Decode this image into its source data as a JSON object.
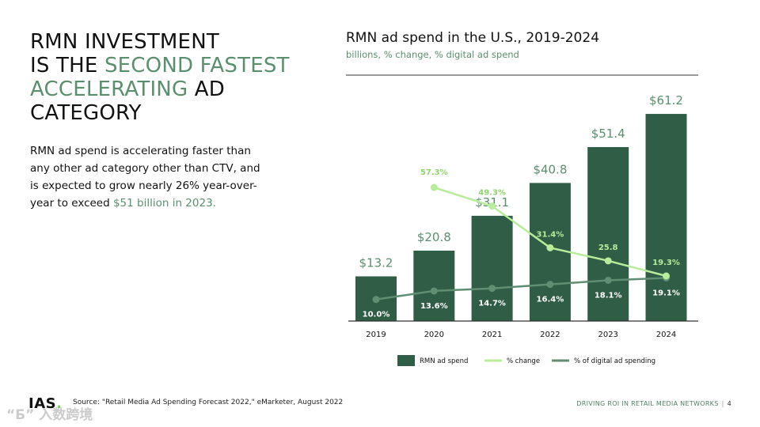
{
  "headline": {
    "line1": "RMN INVESTMENT",
    "line2_prefix": "IS THE ",
    "line2_accent": "SECOND FASTEST",
    "line3_accent": "ACCELERATING",
    "line3_suffix": " AD",
    "line4": "CATEGORY"
  },
  "body": {
    "text": "RMN ad spend is accelerating faster than any other ad category other than CTV, and is expected to grow nearly 26% year-over-year to exceed ",
    "accent": "$51 billion in 2023."
  },
  "chart": {
    "title": "RMN ad spend in the U.S., 2019-2024",
    "subtitle": "billions, % change, % digital ad spend"
  },
  "colors": {
    "bar": "#2f5d45",
    "change_line": "#b8eb9a",
    "change_text": "#8fd66a",
    "digital_line": "#5f8e72",
    "accent_text": "#5a8f6e",
    "axis": "#333333"
  },
  "chart_data": {
    "type": "bar",
    "categories": [
      "2019",
      "2020",
      "2021",
      "2022",
      "2023",
      "2024"
    ],
    "series": [
      {
        "name": "RMN ad spend",
        "type": "bar",
        "values": [
          13.2,
          20.8,
          31.1,
          40.8,
          51.4,
          61.2
        ],
        "labels": [
          "$13.2",
          "$20.8",
          "$31.1",
          "$40.8",
          "$51.4",
          "$61.2"
        ]
      },
      {
        "name": "% change",
        "type": "line",
        "values": [
          null,
          57.3,
          49.3,
          31.4,
          25.8,
          19.3
        ],
        "labels": [
          "",
          "57.3%",
          "49.3%",
          "31.4%",
          "25.8",
          "19.3%"
        ]
      },
      {
        "name": "% of digital ad spending",
        "type": "line",
        "values": [
          10.0,
          13.6,
          14.7,
          16.4,
          18.1,
          19.1
        ],
        "labels": [
          "10.0%",
          "13.6%",
          "14.7%",
          "16.4%",
          "18.1%",
          "19.1%"
        ]
      }
    ],
    "legend_position": "bottom",
    "grid": false
  },
  "footer": {
    "logo": "IAS",
    "logo_dot": ".",
    "source": "Source: \"Retail Media Ad Spending Forecast 2022,\" eMarketer, August 2022",
    "right_text": "DRIVING ROI IN RETAIL MEDIA NETWORKS",
    "separator": "|",
    "page_number": "4"
  },
  "watermark": "“Б” 入数跨境"
}
